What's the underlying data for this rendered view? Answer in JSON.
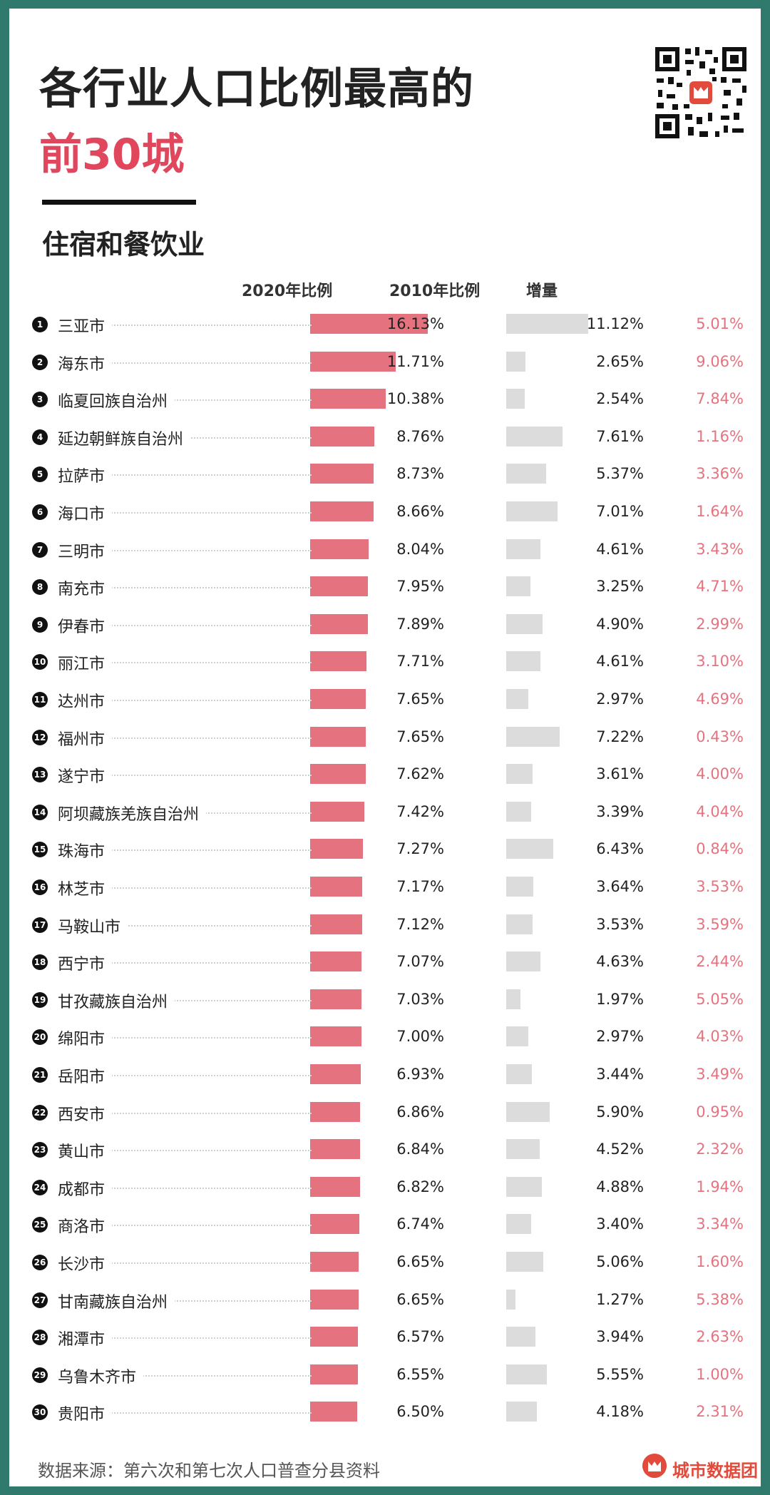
{
  "header": {
    "title_line1": "各行业人口比例最高的",
    "title_line2": "前30城",
    "subtitle": "住宿和餐饮业"
  },
  "columns": {
    "col2020": "2020年比例",
    "col2010": "2010年比例",
    "increase": "增量"
  },
  "footer": {
    "source": "数据来源：第六次和第七次人口普查分县资料",
    "brand": "城市数据团"
  },
  "colors": {
    "bar2020": "#e5737f",
    "bar2010": "#dcdcdc",
    "increase_text": "#e5737f",
    "title_accent": "#e0475d",
    "frame": "#2f7a6d"
  },
  "chart_data": {
    "type": "bar",
    "title": "各行业人口比例最高的前30城",
    "subtitle": "住宿和餐饮业",
    "categories": [
      "三亚市",
      "海东市",
      "临夏回族自治州",
      "延边朝鲜族自治州",
      "拉萨市",
      "海口市",
      "三明市",
      "南充市",
      "伊春市",
      "丽江市",
      "达州市",
      "福州市",
      "遂宁市",
      "阿坝藏族羌族自治州",
      "珠海市",
      "林芝市",
      "马鞍山市",
      "西宁市",
      "甘孜藏族自治州",
      "绵阳市",
      "岳阳市",
      "西安市",
      "黄山市",
      "成都市",
      "商洛市",
      "长沙市",
      "甘南藏族自治州",
      "湘潭市",
      "乌鲁木齐市",
      "贵阳市"
    ],
    "series": [
      {
        "name": "2020年比例",
        "values": [
          16.13,
          11.71,
          10.38,
          8.76,
          8.73,
          8.66,
          8.04,
          7.95,
          7.89,
          7.71,
          7.65,
          7.65,
          7.62,
          7.42,
          7.27,
          7.17,
          7.12,
          7.07,
          7.03,
          7.0,
          6.93,
          6.86,
          6.84,
          6.82,
          6.74,
          6.65,
          6.65,
          6.57,
          6.55,
          6.5
        ]
      },
      {
        "name": "2010年比例",
        "values": [
          11.12,
          2.65,
          2.54,
          7.61,
          5.37,
          7.01,
          4.61,
          3.25,
          4.9,
          4.61,
          2.97,
          7.22,
          3.61,
          3.39,
          6.43,
          3.64,
          3.53,
          4.63,
          1.97,
          2.97,
          3.44,
          5.9,
          4.52,
          4.88,
          3.4,
          5.06,
          1.27,
          3.94,
          5.55,
          4.18
        ]
      },
      {
        "name": "增量",
        "values": [
          5.01,
          9.06,
          7.84,
          1.16,
          3.36,
          1.64,
          3.43,
          4.71,
          2.99,
          3.1,
          4.69,
          0.43,
          4.0,
          4.04,
          0.84,
          3.53,
          3.59,
          2.44,
          5.05,
          4.03,
          3.49,
          0.95,
          2.32,
          1.94,
          3.34,
          1.6,
          5.38,
          2.63,
          1.0,
          2.31
        ]
      }
    ],
    "display": {
      "v2020": [
        "16.13%",
        "11.71%",
        "10.38%",
        "8.76%",
        "8.73%",
        "8.66%",
        "8.04%",
        "7.95%",
        "7.89%",
        "7.71%",
        "7.65%",
        "7.65%",
        "7.62%",
        "7.42%",
        "7.27%",
        "7.17%",
        "7.12%",
        "7.07%",
        "7.03%",
        "7.00%",
        "6.93%",
        "6.86%",
        "6.84%",
        "6.82%",
        "6.74%",
        "6.65%",
        "6.65%",
        "6.57%",
        "6.55%",
        "6.50%"
      ],
      "v2010": [
        "11.12%",
        "2.65%",
        "2.54%",
        "7.61%",
        "5.37%",
        "7.01%",
        "4.61%",
        "3.25%",
        "4.90%",
        "4.61%",
        "2.97%",
        "7.22%",
        "3.61%",
        "3.39%",
        "6.43%",
        "3.64%",
        "3.53%",
        "4.63%",
        "1.97%",
        "2.97%",
        "3.44%",
        "5.90%",
        "4.52%",
        "4.88%",
        "3.40%",
        "5.06%",
        "1.27%",
        "3.94%",
        "5.55%",
        "4.18%"
      ],
      "inc": [
        "5.01%",
        "9.06%",
        "7.84%",
        "1.16%",
        "3.36%",
        "1.64%",
        "3.43%",
        "4.71%",
        "2.99%",
        "3.10%",
        "4.69%",
        "0.43%",
        "4.00%",
        "4.04%",
        "0.84%",
        "3.53%",
        "3.59%",
        "2.44%",
        "5.05%",
        "4.03%",
        "3.49%",
        "0.95%",
        "2.32%",
        "1.94%",
        "3.34%",
        "1.60%",
        "5.38%",
        "2.63%",
        "1.00%",
        "2.31%"
      ]
    },
    "ranks": [
      "1",
      "2",
      "3",
      "4",
      "5",
      "6",
      "7",
      "8",
      "9",
      "10",
      "11",
      "12",
      "13",
      "14",
      "15",
      "16",
      "17",
      "18",
      "19",
      "20",
      "21",
      "22",
      "23",
      "24",
      "25",
      "26",
      "27",
      "28",
      "29",
      "30"
    ],
    "unit": "%",
    "xlim": [
      0,
      16.13
    ]
  }
}
